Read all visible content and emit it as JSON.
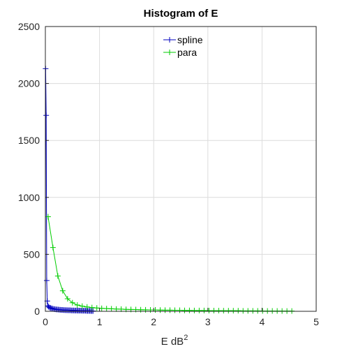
{
  "chart_data": {
    "type": "line",
    "title": "Histogram of E",
    "xlabel": "E dB",
    "xlabel_superscript": "2",
    "ylabel": "",
    "xlim": [
      0,
      5
    ],
    "ylim": [
      0,
      2500
    ],
    "x_ticks": [
      "0",
      "1",
      "2",
      "3",
      "4",
      "5"
    ],
    "y_ticks": [
      "0",
      "500",
      "1000",
      "1500",
      "2000",
      "2500"
    ],
    "grid": true,
    "legend_position": "top-center",
    "series": [
      {
        "name": "spline",
        "color": "#0000bf",
        "marker": "plus",
        "x": [
          0.005,
          0.015,
          0.025,
          0.035,
          0.045,
          0.06,
          0.08,
          0.1,
          0.12,
          0.14,
          0.16,
          0.18,
          0.2,
          0.22,
          0.24,
          0.26,
          0.28,
          0.3,
          0.32,
          0.34,
          0.36,
          0.38,
          0.4,
          0.42,
          0.44,
          0.46,
          0.48,
          0.5,
          0.52,
          0.54,
          0.56,
          0.58,
          0.6,
          0.62,
          0.64,
          0.66,
          0.68,
          0.7,
          0.72,
          0.74,
          0.76,
          0.78,
          0.8,
          0.82,
          0.84,
          0.86,
          0.88
        ],
        "y": [
          2130,
          1720,
          270,
          90,
          50,
          40,
          32,
          28,
          25,
          22,
          20,
          18,
          17,
          16,
          15,
          14,
          13,
          12,
          12,
          11,
          11,
          10,
          10,
          9,
          9,
          9,
          8,
          8,
          8,
          7,
          7,
          7,
          6,
          6,
          6,
          6,
          5,
          5,
          5,
          5,
          4,
          4,
          4,
          4,
          3,
          3,
          3
        ]
      },
      {
        "name": "para",
        "color": "#00cc00",
        "marker": "plus",
        "x": [
          0.05,
          0.14,
          0.23,
          0.32,
          0.41,
          0.5,
          0.59,
          0.68,
          0.77,
          0.86,
          0.95,
          1.04,
          1.13,
          1.22,
          1.31,
          1.4,
          1.49,
          1.58,
          1.67,
          1.76,
          1.85,
          1.94,
          2.03,
          2.12,
          2.21,
          2.3,
          2.39,
          2.48,
          2.57,
          2.66,
          2.75,
          2.84,
          2.93,
          3.02,
          3.11,
          3.2,
          3.29,
          3.38,
          3.47,
          3.56,
          3.65,
          3.74,
          3.83,
          3.92,
          4.01,
          4.1,
          4.19,
          4.28,
          4.37,
          4.46,
          4.55
        ],
        "y": [
          830,
          560,
          310,
          180,
          110,
          75,
          55,
          45,
          38,
          33,
          29,
          26,
          24,
          22,
          20,
          19,
          17,
          16,
          15,
          14,
          13,
          12,
          12,
          11,
          10,
          10,
          9,
          9,
          8,
          8,
          7,
          7,
          7,
          6,
          6,
          6,
          5,
          5,
          5,
          5,
          4,
          4,
          4,
          4,
          3,
          3,
          3,
          3,
          2,
          2,
          2
        ]
      }
    ]
  }
}
